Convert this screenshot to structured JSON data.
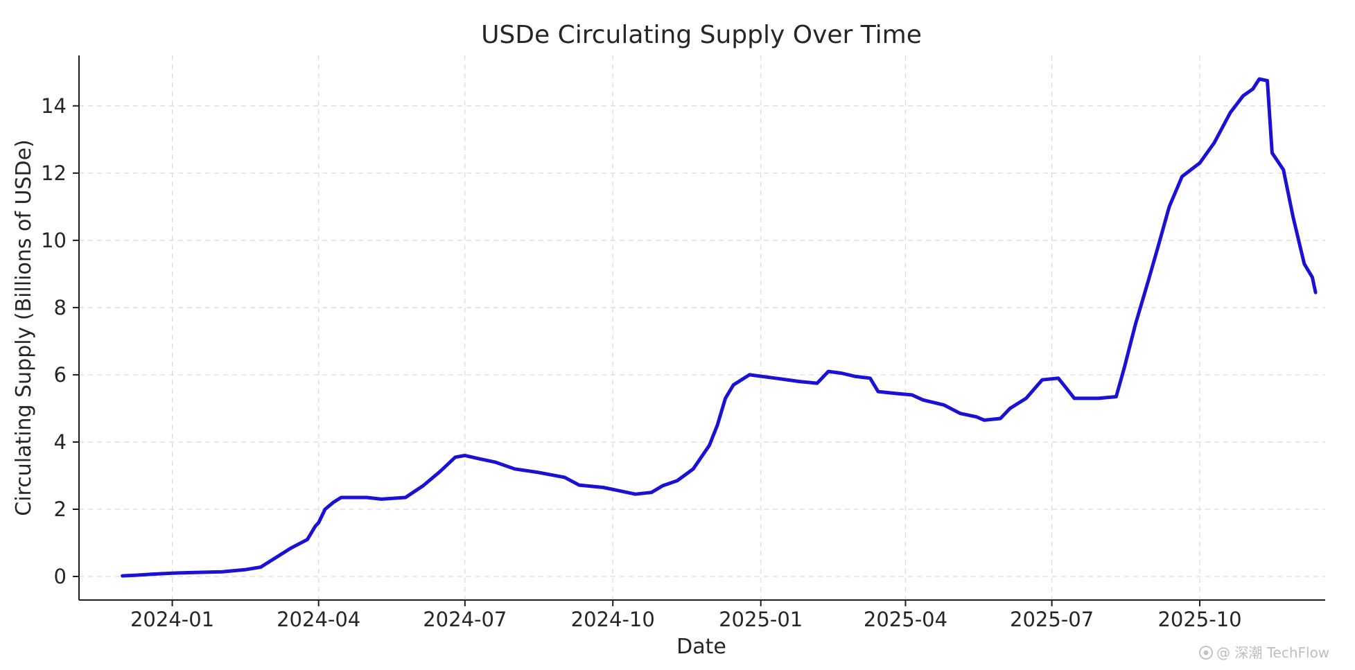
{
  "chart_data": {
    "type": "line",
    "title": "USDe Circulating Supply Over Time",
    "xlabel": "Date",
    "ylabel": "Circulating Supply (Billions of USDe)",
    "x_type": "date",
    "xlim": [
      "2023-11-04",
      "2025-12-18"
    ],
    "ylim": [
      -0.7,
      15.5
    ],
    "x_ticks": [
      "2024-01-01",
      "2024-04-01",
      "2024-07-01",
      "2024-10-01",
      "2025-01-01",
      "2025-04-01",
      "2025-07-01",
      "2025-10-01"
    ],
    "x_tick_labels": [
      "2024-01",
      "2024-04",
      "2024-07",
      "2024-10",
      "2025-01",
      "2025-04",
      "2025-07",
      "2025-10"
    ],
    "y_ticks": [
      0,
      2,
      4,
      6,
      8,
      10,
      12,
      14
    ],
    "y_tick_labels": [
      "0",
      "2",
      "4",
      "6",
      "8",
      "10",
      "12",
      "14"
    ],
    "grid": true,
    "series": [
      {
        "color": "#1a10d6",
        "points": [
          [
            "2023-12-01",
            0.02
          ],
          [
            "2023-12-10",
            0.04
          ],
          [
            "2023-12-20",
            0.07
          ],
          [
            "2024-01-01",
            0.1
          ],
          [
            "2024-01-15",
            0.12
          ],
          [
            "2024-02-01",
            0.14
          ],
          [
            "2024-02-15",
            0.2
          ],
          [
            "2024-02-25",
            0.28
          ],
          [
            "2024-03-05",
            0.55
          ],
          [
            "2024-03-15",
            0.85
          ],
          [
            "2024-03-25",
            1.1
          ],
          [
            "2024-03-30",
            1.5
          ],
          [
            "2024-04-01",
            1.6
          ],
          [
            "2024-04-05",
            2.0
          ],
          [
            "2024-04-10",
            2.2
          ],
          [
            "2024-04-15",
            2.35
          ],
          [
            "2024-05-01",
            2.35
          ],
          [
            "2024-05-10",
            2.3
          ],
          [
            "2024-05-25",
            2.35
          ],
          [
            "2024-06-05",
            2.7
          ],
          [
            "2024-06-15",
            3.1
          ],
          [
            "2024-06-25",
            3.55
          ],
          [
            "2024-07-01",
            3.6
          ],
          [
            "2024-07-10",
            3.5
          ],
          [
            "2024-07-20",
            3.4
          ],
          [
            "2024-08-01",
            3.2
          ],
          [
            "2024-08-15",
            3.1
          ],
          [
            "2024-09-01",
            2.95
          ],
          [
            "2024-09-10",
            2.72
          ],
          [
            "2024-09-25",
            2.65
          ],
          [
            "2024-10-05",
            2.55
          ],
          [
            "2024-10-15",
            2.45
          ],
          [
            "2024-10-25",
            2.5
          ],
          [
            "2024-11-01",
            2.7
          ],
          [
            "2024-11-10",
            2.85
          ],
          [
            "2024-11-20",
            3.2
          ],
          [
            "2024-11-30",
            3.9
          ],
          [
            "2024-12-05",
            4.5
          ],
          [
            "2024-12-10",
            5.3
          ],
          [
            "2024-12-15",
            5.7
          ],
          [
            "2024-12-25",
            6.0
          ],
          [
            "2025-01-10",
            5.9
          ],
          [
            "2025-01-25",
            5.8
          ],
          [
            "2025-02-05",
            5.75
          ],
          [
            "2025-02-12",
            6.1
          ],
          [
            "2025-02-20",
            6.05
          ],
          [
            "2025-03-01",
            5.95
          ],
          [
            "2025-03-10",
            5.9
          ],
          [
            "2025-03-15",
            5.5
          ],
          [
            "2025-03-25",
            5.45
          ],
          [
            "2025-04-05",
            5.4
          ],
          [
            "2025-04-12",
            5.25
          ],
          [
            "2025-04-25",
            5.1
          ],
          [
            "2025-05-05",
            4.85
          ],
          [
            "2025-05-15",
            4.75
          ],
          [
            "2025-05-20",
            4.65
          ],
          [
            "2025-05-30",
            4.7
          ],
          [
            "2025-06-05",
            5.0
          ],
          [
            "2025-06-15",
            5.3
          ],
          [
            "2025-06-25",
            5.85
          ],
          [
            "2025-07-05",
            5.9
          ],
          [
            "2025-07-10",
            5.6
          ],
          [
            "2025-07-15",
            5.3
          ],
          [
            "2025-07-30",
            5.3
          ],
          [
            "2025-08-10",
            5.35
          ],
          [
            "2025-08-15",
            6.2
          ],
          [
            "2025-08-22",
            7.5
          ],
          [
            "2025-08-30",
            8.8
          ],
          [
            "2025-09-05",
            9.8
          ],
          [
            "2025-09-12",
            11.0
          ],
          [
            "2025-09-20",
            11.9
          ],
          [
            "2025-10-01",
            12.3
          ],
          [
            "2025-10-10",
            12.9
          ],
          [
            "2025-10-20",
            13.8
          ],
          [
            "2025-10-28",
            14.3
          ],
          [
            "2025-11-03",
            14.5
          ],
          [
            "2025-11-07",
            14.8
          ],
          [
            "2025-11-12",
            14.75
          ],
          [
            "2025-11-15",
            12.6
          ],
          [
            "2025-11-22",
            12.1
          ],
          [
            "2025-11-28",
            10.7
          ],
          [
            "2025-12-05",
            9.3
          ],
          [
            "2025-12-10",
            8.9
          ],
          [
            "2025-12-12",
            8.45
          ]
        ]
      }
    ]
  },
  "watermark": {
    "text": "@ 深潮 TechFlow",
    "icon": "techflow-logo-icon"
  }
}
